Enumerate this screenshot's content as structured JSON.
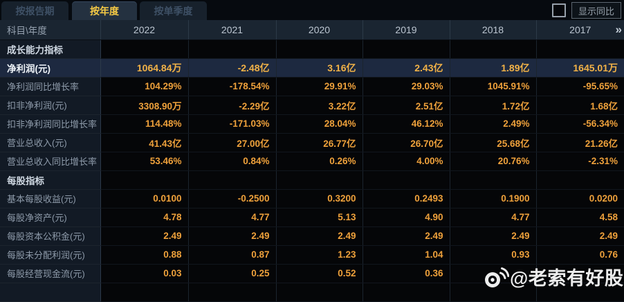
{
  "tabs": [
    {
      "label": "按报告期",
      "active": false
    },
    {
      "label": "按年度",
      "active": true
    },
    {
      "label": "按单季度",
      "active": false
    }
  ],
  "controls": {
    "show_yoy_label": "显示同比",
    "checkbox_checked": false
  },
  "table": {
    "corner_label": "科目\\年度",
    "years": [
      "2022",
      "2021",
      "2020",
      "2019",
      "2018",
      "2017"
    ],
    "more_icon": "»",
    "rows": [
      {
        "type": "section",
        "label": "成长能力指标",
        "values": [
          "",
          "",
          "",
          "",
          "",
          ""
        ]
      },
      {
        "type": "data",
        "highlight": true,
        "label": "净利润(元)",
        "values": [
          "1064.84万",
          "-2.48亿",
          "3.16亿",
          "2.43亿",
          "1.89亿",
          "1645.01万"
        ]
      },
      {
        "type": "data",
        "label": "净利润同比增长率",
        "values": [
          "104.29%",
          "-178.54%",
          "29.91%",
          "29.03%",
          "1045.91%",
          "-95.65%"
        ]
      },
      {
        "type": "data",
        "label": "扣非净利润(元)",
        "values": [
          "3308.90万",
          "-2.29亿",
          "3.22亿",
          "2.51亿",
          "1.72亿",
          "1.68亿"
        ]
      },
      {
        "type": "data",
        "label": "扣非净利润同比增长率",
        "values": [
          "114.48%",
          "-171.03%",
          "28.04%",
          "46.12%",
          "2.49%",
          "-56.34%"
        ]
      },
      {
        "type": "data",
        "label": "营业总收入(元)",
        "values": [
          "41.43亿",
          "27.00亿",
          "26.77亿",
          "26.70亿",
          "25.68亿",
          "21.26亿"
        ]
      },
      {
        "type": "data",
        "label": "营业总收入同比增长率",
        "values": [
          "53.46%",
          "0.84%",
          "0.26%",
          "4.00%",
          "20.76%",
          "-2.31%"
        ]
      },
      {
        "type": "section",
        "label": "每股指标",
        "values": [
          "",
          "",
          "",
          "",
          "",
          ""
        ]
      },
      {
        "type": "data",
        "label": "基本每股收益(元)",
        "values": [
          "0.0100",
          "-0.2500",
          "0.3200",
          "0.2493",
          "0.1900",
          "0.0200"
        ]
      },
      {
        "type": "data",
        "label": "每股净资产(元)",
        "values": [
          "4.78",
          "4.77",
          "5.13",
          "4.90",
          "4.77",
          "4.58"
        ]
      },
      {
        "type": "data",
        "label": "每股资本公积金(元)",
        "values": [
          "2.49",
          "2.49",
          "2.49",
          "2.49",
          "2.49",
          "2.49"
        ]
      },
      {
        "type": "data",
        "label": "每股未分配利润(元)",
        "values": [
          "0.88",
          "0.87",
          "1.23",
          "1.04",
          "0.93",
          "0.76"
        ]
      },
      {
        "type": "data",
        "label": "每股经营现金流(元)",
        "values": [
          "0.03",
          "0.25",
          "0.52",
          "0.36",
          "",
          ""
        ]
      }
    ]
  },
  "watermark": {
    "handle": "@老索有好股",
    "icon": "weibo-eye"
  },
  "colors": {
    "accent_gold": "#efa13b",
    "selected_row_bg": "#1d2940",
    "tab_active_text": "#f6ca45",
    "header_bg": "#1a2531",
    "label_col_bg": "#121a25",
    "page_bg": "#05070b"
  }
}
